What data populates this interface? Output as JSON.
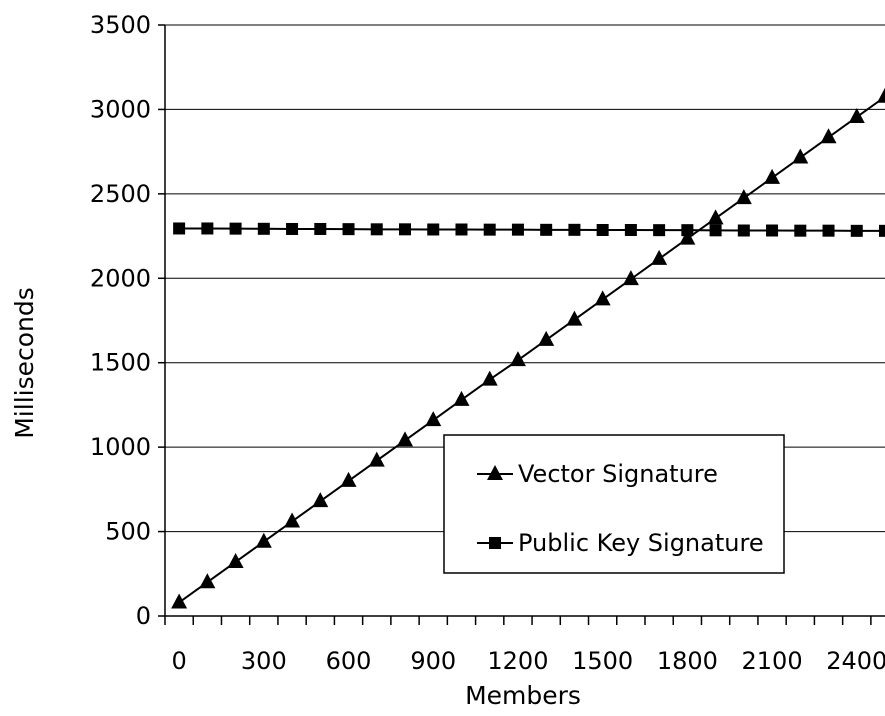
{
  "chart_data": {
    "type": "line",
    "title": "",
    "xlabel": "Members",
    "ylabel": "Milliseconds",
    "xlim": [
      -50,
      2500
    ],
    "ylim": [
      0,
      3500
    ],
    "x_ticks": [
      "0",
      "300",
      "600",
      "900",
      "1200",
      "1500",
      "1800",
      "2100",
      "2400"
    ],
    "x_tick_values": [
      0,
      300,
      600,
      900,
      1200,
      1500,
      1800,
      2100,
      2400
    ],
    "y_ticks": [
      "0",
      "500",
      "1000",
      "1500",
      "2000",
      "2500",
      "3000",
      "3500"
    ],
    "y_tick_values": [
      0,
      500,
      1000,
      1500,
      2000,
      2500,
      3000,
      3500
    ],
    "grid": "horizontal",
    "legend_position": "center-right",
    "x": [
      0,
      100,
      200,
      300,
      400,
      500,
      600,
      700,
      800,
      900,
      1000,
      1100,
      1200,
      1300,
      1400,
      1500,
      1600,
      1700,
      1800,
      1900,
      2000,
      2100,
      2200,
      2300,
      2400,
      2500
    ],
    "series": [
      {
        "name": "Vector Signature",
        "marker": "triangle",
        "values": [
          80,
          200,
          320,
          440,
          560,
          680,
          800,
          920,
          1040,
          1160,
          1280,
          1400,
          1515,
          1635,
          1755,
          1875,
          1995,
          2115,
          2235,
          2355,
          2475,
          2595,
          2715,
          2835,
          2955,
          3075
        ]
      },
      {
        "name": "Public Key Signature",
        "marker": "square",
        "values": [
          2295,
          2295,
          2294,
          2293,
          2292,
          2292,
          2291,
          2290,
          2290,
          2289,
          2289,
          2288,
          2288,
          2287,
          2287,
          2286,
          2286,
          2285,
          2285,
          2284,
          2283,
          2283,
          2282,
          2282,
          2281,
          2281
        ]
      }
    ]
  }
}
